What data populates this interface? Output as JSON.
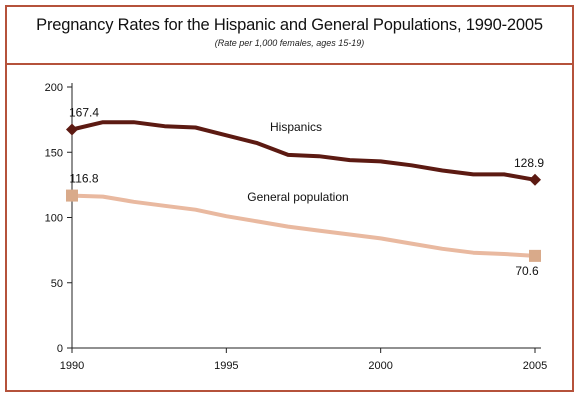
{
  "header": {
    "title": "Pregnancy Rates for the Hispanic and General Populations, 1990-2005",
    "subtitle": "(Rate per 1,000 females, ages 15-19)"
  },
  "chart_data": {
    "type": "line",
    "xlim": [
      1990,
      2005
    ],
    "ylim": [
      0,
      200
    ],
    "x_ticks": [
      "1990",
      "1995",
      "2000",
      "2005"
    ],
    "y_ticks": [
      "0",
      "50",
      "100",
      "150",
      "200"
    ],
    "grid": false,
    "series": [
      {
        "name": "Hispanics",
        "color": "#5c1a12",
        "x": [
          1990,
          1991,
          1992,
          1993,
          1994,
          1995,
          1996,
          1997,
          1998,
          1999,
          2000,
          2001,
          2002,
          2003,
          2004,
          2005
        ],
        "values": [
          167.4,
          173,
          173,
          170,
          169,
          163,
          157,
          148,
          147,
          144,
          143,
          140,
          136,
          133,
          133,
          128.9
        ],
        "marker": "diamond",
        "start_label": "167.4",
        "end_label": "128.9"
      },
      {
        "name": "General population",
        "color": "#e9b9a0",
        "marker_color": "#d9aa8a",
        "x": [
          1990,
          1991,
          1992,
          1993,
          1994,
          1995,
          1996,
          1997,
          1998,
          1999,
          2000,
          2001,
          2002,
          2003,
          2004,
          2005
        ],
        "values": [
          116.8,
          116,
          112,
          109,
          106,
          101,
          97,
          93,
          90,
          87,
          84,
          80,
          76,
          73,
          72,
          70.6
        ],
        "marker": "square",
        "start_label": "116.8",
        "end_label": "70.6"
      }
    ]
  }
}
